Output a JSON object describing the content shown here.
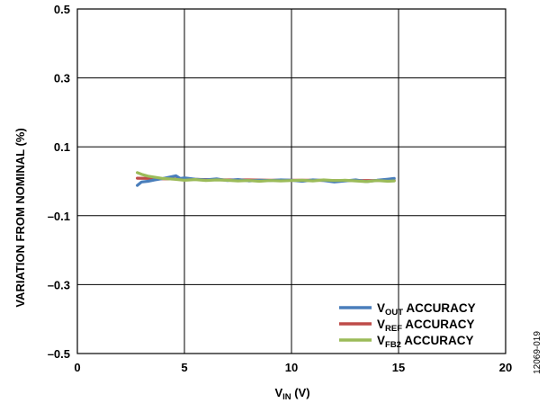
{
  "chart_data": {
    "type": "line",
    "xlabel": {
      "main": "V",
      "sub": "IN",
      "rest": " (V)"
    },
    "ylabel": "VARIATION FROM NOMINAL (%)",
    "xlim": [
      0,
      20
    ],
    "ylim": [
      -0.5,
      0.5
    ],
    "x_ticks": [
      "0",
      "5",
      "10",
      "15",
      "20"
    ],
    "y_ticks": [
      "–0.5",
      "–0.3",
      "–0.1",
      "0.1",
      "0.3",
      "0.5"
    ],
    "grid": true,
    "legend_position": "bottom-right",
    "series": [
      {
        "legend": {
          "main": "V",
          "sub": "OUT",
          "rest": " ACCURACY"
        },
        "color": "#4a7ebb",
        "x": [
          2.8,
          3.0,
          3.3,
          3.6,
          4.0,
          4.3,
          4.6,
          4.8,
          5.0,
          5.5,
          6.0,
          6.5,
          7.0,
          7.5,
          8.0,
          8.5,
          9.0,
          9.5,
          10.0,
          10.5,
          11.0,
          11.5,
          12.0,
          12.5,
          13.0,
          13.5,
          14.0,
          14.5,
          14.8
        ],
        "y": [
          -0.012,
          -0.002,
          0.0,
          0.004,
          0.008,
          0.012,
          0.016,
          0.008,
          0.01,
          0.006,
          0.004,
          0.007,
          0.002,
          0.005,
          0.001,
          0.003,
          0.002,
          0.004,
          0.003,
          0.0,
          0.004,
          0.002,
          -0.002,
          0.001,
          0.004,
          -0.001,
          0.003,
          0.006,
          0.008
        ]
      },
      {
        "legend": {
          "main": "V",
          "sub": "REF",
          "rest": " ACCURACY"
        },
        "color": "#be4b48",
        "x": [
          2.8,
          3.5,
          4.0,
          5.0,
          6.0,
          7.0,
          8.0,
          9.0,
          10.0,
          11.0,
          12.0,
          13.0,
          14.0,
          14.8
        ],
        "y": [
          0.009,
          0.008,
          0.007,
          0.006,
          0.005,
          0.004,
          0.004,
          0.003,
          0.003,
          0.003,
          0.002,
          0.002,
          0.002,
          0.002
        ]
      },
      {
        "legend": {
          "main": "V",
          "sub": "FB2",
          "rest": " ACCURACY"
        },
        "color": "#9bbb59",
        "x": [
          2.8,
          3.0,
          3.3,
          3.6,
          4.0,
          4.5,
          5.0,
          5.5,
          6.0,
          6.5,
          7.0,
          7.5,
          8.0,
          8.5,
          9.0,
          9.5,
          10.0,
          10.5,
          11.0,
          11.5,
          12.0,
          12.5,
          13.0,
          13.5,
          14.0,
          14.5,
          14.8
        ],
        "y": [
          0.025,
          0.02,
          0.015,
          0.012,
          0.008,
          0.006,
          0.003,
          0.005,
          0.002,
          0.004,
          0.003,
          0.001,
          0.002,
          0.0,
          0.002,
          0.001,
          0.002,
          0.003,
          0.001,
          0.004,
          0.002,
          0.003,
          0.001,
          -0.001,
          0.002,
          0.0,
          0.001
        ]
      }
    ]
  },
  "figure_id": "12069-019"
}
